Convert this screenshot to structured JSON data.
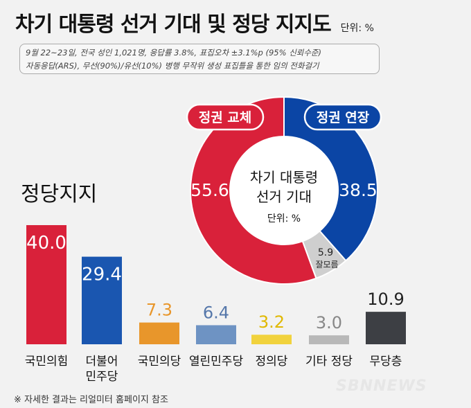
{
  "header": {
    "title": "차기 대통령 선거 기대 및 정당 지지도",
    "unit": "단위: %"
  },
  "survey_note": {
    "line1": "9월 22~23일, 전국 성인 1,021명, 응답률 3.8%, 표집오차 ±3.1%p (95% 신뢰수준)",
    "line2": "자동응답(ARS), 무선(90%)/유선(10%) 병행  무작위 생성 표집틀을 통한 임의 전화걸기"
  },
  "section_label": "정당지지",
  "footnote": "※ 자세한 결과는 리얼미터 홈페이지 참조",
  "watermark": "SBNNEWS",
  "chart_data": [
    {
      "type": "pie",
      "title": "차기 대통령 선거 기대",
      "center_title": [
        "차기 대통령",
        "선거 기대"
      ],
      "unit": "단위: %",
      "slices": [
        {
          "name": "정권 교체",
          "value": 55.6,
          "color": "#d9213a"
        },
        {
          "name": "정권 연장",
          "value": 38.5,
          "color": "#0b45a5"
        },
        {
          "name": "잘모름",
          "value": 5.9,
          "color": "#cfcfcf"
        }
      ]
    },
    {
      "type": "bar",
      "title": "정당지지",
      "categories": [
        "국민의힘",
        "더불어 민주당",
        "국민의당",
        "열린민주당",
        "정의당",
        "기타 정당",
        "무당층"
      ],
      "values": [
        40.0,
        29.4,
        7.3,
        6.4,
        3.2,
        3.0,
        10.9
      ],
      "labels": [
        "40.0",
        "29.4",
        "7.3",
        "6.4",
        "3.2",
        "3.0",
        "10.9"
      ],
      "colors": [
        "#d9213a",
        "#1a56b0",
        "#e8962b",
        "#6e93c3",
        "#f1d23d",
        "#b8b8b8",
        "#3d3f44"
      ],
      "label_colors": [
        "#ffffff",
        "#ffffff",
        "#e8962b",
        "#5577aa",
        "#e0b800",
        "#888888",
        "#222222"
      ]
    }
  ]
}
